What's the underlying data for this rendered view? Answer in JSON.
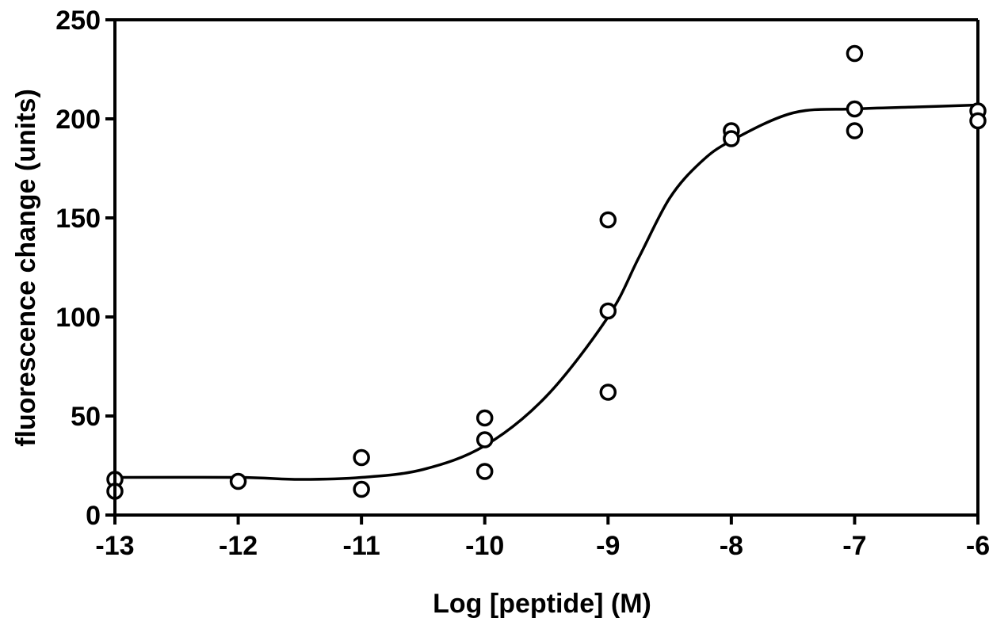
{
  "chart_data": {
    "type": "scatter",
    "xlabel": "Log [peptide] (M)",
    "ylabel": "fluorescence change (units)",
    "xlim": [
      -13,
      -6
    ],
    "ylim": [
      0,
      250
    ],
    "x_ticks": [
      -13,
      -12,
      -11,
      -10,
      -9,
      -8,
      -7,
      -6
    ],
    "x_tick_labels": [
      "-13",
      "-12",
      "-11",
      "-10",
      "-9",
      "-8",
      "-7",
      "-6"
    ],
    "y_ticks": [
      0,
      50,
      100,
      150,
      200,
      250
    ],
    "y_tick_labels": [
      "0",
      "50",
      "100",
      "150",
      "200",
      "250"
    ],
    "grid": false,
    "series": [
      {
        "type": "scatter",
        "marker": "open-circle",
        "points": [
          {
            "x": -13,
            "y": 18
          },
          {
            "x": -13,
            "y": 12
          },
          {
            "x": -12,
            "y": 17
          },
          {
            "x": -11,
            "y": 29
          },
          {
            "x": -11,
            "y": 13
          },
          {
            "x": -10,
            "y": 49
          },
          {
            "x": -10,
            "y": 38
          },
          {
            "x": -10,
            "y": 22
          },
          {
            "x": -9,
            "y": 149
          },
          {
            "x": -9,
            "y": 103
          },
          {
            "x": -9,
            "y": 62
          },
          {
            "x": -8,
            "y": 194
          },
          {
            "x": -8,
            "y": 190
          },
          {
            "x": -7,
            "y": 233
          },
          {
            "x": -7,
            "y": 205
          },
          {
            "x": -7,
            "y": 194
          },
          {
            "x": -6,
            "y": 204
          },
          {
            "x": -6,
            "y": 199
          }
        ]
      },
      {
        "type": "line",
        "curve": "sigmoidal-fit",
        "points": [
          {
            "x": -13,
            "y": 19
          },
          {
            "x": -12,
            "y": 19
          },
          {
            "x": -11.5,
            "y": 18
          },
          {
            "x": -11,
            "y": 19
          },
          {
            "x": -10.5,
            "y": 23
          },
          {
            "x": -10,
            "y": 35
          },
          {
            "x": -9.5,
            "y": 60
          },
          {
            "x": -9,
            "y": 100
          },
          {
            "x": -8.75,
            "y": 130
          },
          {
            "x": -8.5,
            "y": 160
          },
          {
            "x": -8.25,
            "y": 178
          },
          {
            "x": -8,
            "y": 189
          },
          {
            "x": -7.5,
            "y": 203
          },
          {
            "x": -7,
            "y": 205
          },
          {
            "x": -6.5,
            "y": 206
          },
          {
            "x": -6,
            "y": 207
          }
        ]
      }
    ]
  }
}
